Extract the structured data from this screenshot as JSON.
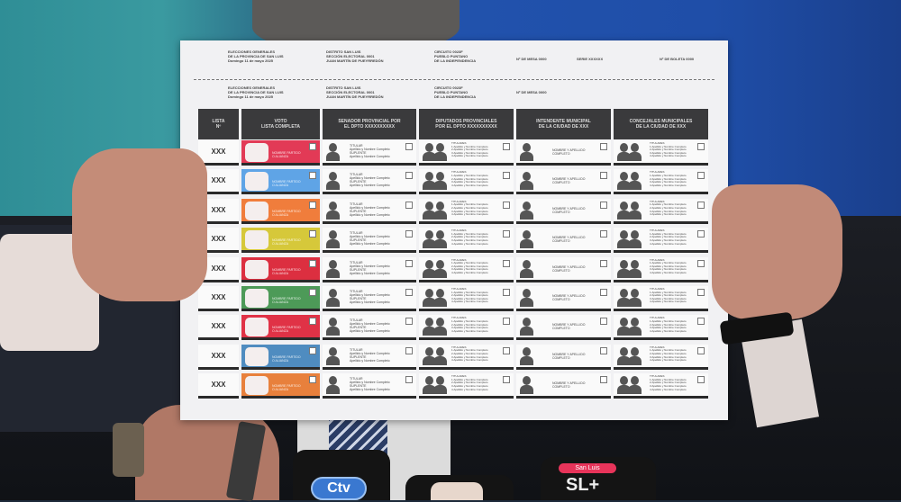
{
  "ballot": {
    "stub": {
      "election": "ELECCIONES GENERALES\nDE LA PROVINCIA DE SAN LUIS\nDomingo 11 de mayo 2025",
      "district": "DISTRITO SAN LUIS\nSECCIÓN ELECTORAL 0001\nJUAN MARTÍN DE PUEYRREDÓN",
      "circuit": "CIRCUITO 0023F\nPUEBLO PUNTANO\nDE LA INDEPENDENCIA",
      "mesa": "Nº DE MESA 0000",
      "serie": "SERIE XXXXXX",
      "boleta": "Nº DE BOLETA 0000"
    },
    "body_header": {
      "election": "ELECCIONES GENERALES\nDE LA PROVINCIA DE SAN LUIS\nDomingo 11 de mayo 2025",
      "district": "DISTRITO SAN LUIS\nSECCIÓN ELECTORAL 0001\nJUAN MARTÍN DE PUEYRREDÓN",
      "circuit": "CIRCUITO 0023F\nPUEBLO PUNTANO\nDE LA INDEPENDENCIA",
      "mesa": "Nº DE MESA 0000"
    },
    "columns": [
      "LISTA\nNº",
      "VOTO\nLISTA COMPLETA",
      "SENADOR PROVINCIAL POR\nEL DPTO XXXXXXXXXX",
      "DIPUTADOS PROVINCIALES\nPOR EL DPTO XXXXXXXXXX",
      "INTENDENTE MUNICIPAL\nDE LA CIUDAD DE XXX",
      "CONCEJALES MUNICIPALES\nDE LA CIUDAD DE XXX"
    ],
    "senator_text": "TITULAR\nApellido y Nombre Completo\nSUPLENTE\nApellido y Nombre Completo",
    "deputies_text": "TITULARES\n1 Apellido y Nombre Completo\n2 Apellido y Nombre Completo\n3 Apellido y Nombre Completo\n4 Apellido y Nombre Completo",
    "mayor_text": "NOMBRE Y APELLIDO\nCOMPLETO",
    "council_text": "TITULARES\n1 Apellido y Nombre Completo\n2 Apellido y Nombre Completo\n3 Apellido y Nombre Completo\n4 Apellido y Nombre Completo",
    "rows": [
      {
        "lista": "XXX",
        "party": "NOMBRE PARTIDO\nO ALIANZA",
        "color": "#e23a56"
      },
      {
        "lista": "XXX",
        "party": "NOMBRE PARTIDO\nO ALIANZA",
        "color": "#5fa4e6"
      },
      {
        "lista": "XXX",
        "party": "NOMBRE PARTIDO\nO ALIANZA",
        "color": "#f07d3c"
      },
      {
        "lista": "XXX",
        "party": "NOMBRE PARTIDO\nO ALIANZA",
        "color": "#d6c83a"
      },
      {
        "lista": "XXX",
        "party": "NOMBRE PARTIDO\nO ALIANZA",
        "color": "#dc2f40"
      },
      {
        "lista": "XXX",
        "party": "NOMBRE PARTIDO\nO ALIANZA",
        "color": "#4d9a58"
      },
      {
        "lista": "XXX",
        "party": "NOMBRE PARTIDO\nO ALIANZA",
        "color": "#e03246"
      },
      {
        "lista": "XXX",
        "party": "NOMBRE PARTIDO\nO ALIANZA",
        "color": "#4f8cc0"
      },
      {
        "lista": "XXX",
        "party": "NOMBRE PARTIDO\nO ALIANZA",
        "color": "#e8803c"
      }
    ]
  },
  "microphones": {
    "ctv": "Ctv",
    "sanluis": "San Luis",
    "slplus": "SL+"
  }
}
